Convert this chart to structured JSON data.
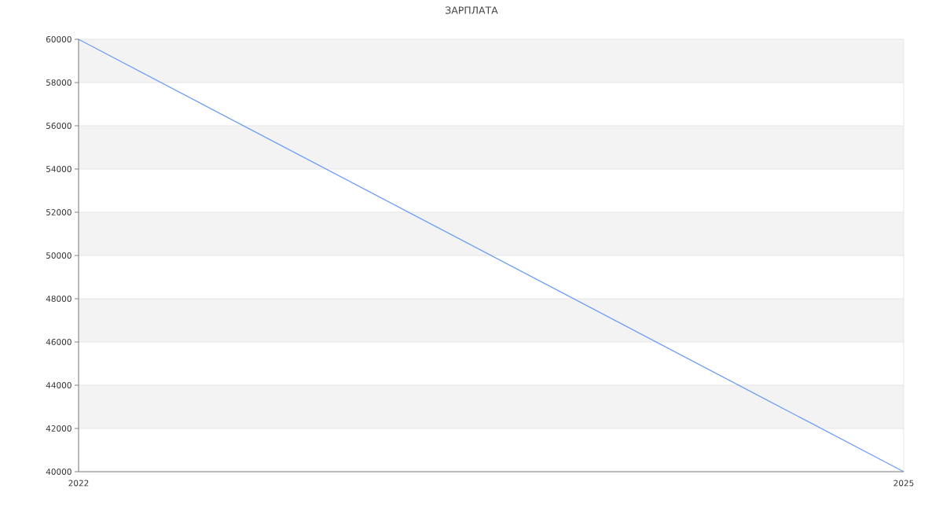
{
  "chart_data": {
    "type": "line",
    "title": "ЗАРПЛАТА",
    "x": [
      2022,
      2025
    ],
    "values": [
      60000,
      40000
    ],
    "color": "#6e9cf4",
    "xlim": [
      2022,
      2025
    ],
    "xticks": [
      2022,
      2025
    ],
    "ylim": [
      40000,
      60000
    ],
    "yticks": [
      40000,
      42000,
      44000,
      46000,
      48000,
      50000,
      52000,
      54000,
      56000,
      58000,
      60000
    ],
    "grid": true
  }
}
